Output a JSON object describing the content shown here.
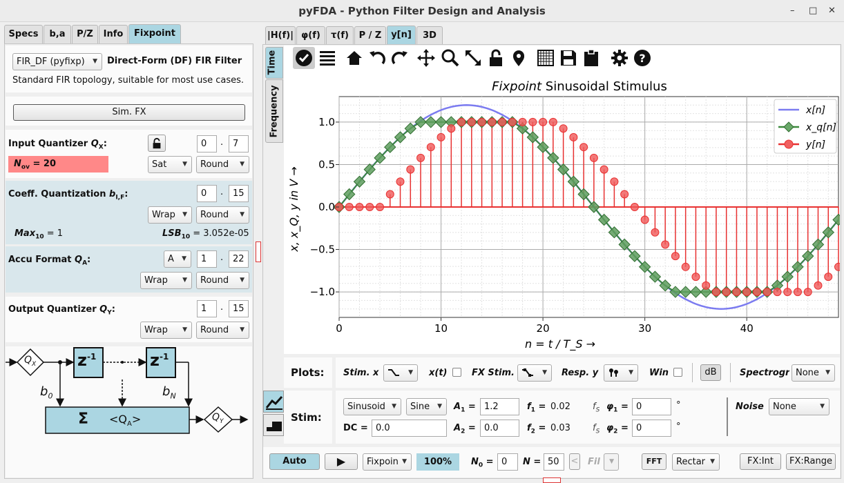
{
  "window": {
    "title": "pyFDA - Python Filter Design and Analysis",
    "minimize": "–",
    "maximize": "□",
    "close": "✕"
  },
  "left_tabs": [
    "Specs",
    "b,a",
    "P/Z",
    "Info",
    "Fixpoint"
  ],
  "fixpoint": {
    "topology_select": "FIR_DF (pyfixp)",
    "topology_title": "Direct-Form (DF) FIR Filter",
    "topology_desc": "Standard FIR topology, suitable for most use cases.",
    "sim_button": "Sim. FX",
    "input_q": {
      "label": "Input Quantizer ",
      "label_sym": "Q",
      "label_sub": "X",
      "label_end": ":",
      "int_bits": "0",
      "dot": ".",
      "frac_bits": "7",
      "overflow_label": "N",
      "overflow_sub": "ov",
      "overflow_value": " = 20",
      "ovfl_mode": "Sat",
      "quant_mode": "Round"
    },
    "coeff_q": {
      "label": "Coeff. Quantization ",
      "label_sym": "b",
      "label_sub": "I,F",
      "label_end": ":",
      "int_bits": "0",
      "dot": ".",
      "frac_bits": "15",
      "ovfl_mode": "Wrap",
      "quant_mode": "Round",
      "max_label": "Max",
      "max_sub": "10",
      "max_value": " = 1",
      "lsb_label": "LSB",
      "lsb_sub": "10",
      "lsb_value": " = 3.052e-05"
    },
    "accu_q": {
      "label": "Accu Format ",
      "label_sym": "Q",
      "label_sub": "A",
      "label_end": ":",
      "mode": "A",
      "int_bits": "1",
      "dot": ".",
      "frac_bits": "22",
      "ovfl_mode": "Wrap",
      "quant_mode": "Round"
    },
    "output_q": {
      "label": "Output Quantizer ",
      "label_sym": "Q",
      "label_sub": "Y",
      "label_end": ":",
      "int_bits": "1",
      "dot": ".",
      "frac_bits": "15",
      "ovfl_mode": "Wrap",
      "quant_mode": "Round"
    }
  },
  "diagram": {
    "qx": "Q",
    "qx_sub": "X",
    "z1": "z",
    "z1_exp": "-1",
    "z2": "z",
    "z2_exp": "-1",
    "b0": "b",
    "b0_sub": "0",
    "bn": "b",
    "bn_sub": "N",
    "sigma": "Σ",
    "qa": "<Q",
    "qa_sub": "A",
    "qa_end": ">",
    "qy": "Q",
    "qy_sub": "Y"
  },
  "right_tabs": [
    "|H(f)|",
    "φ(f)",
    "τ(f)",
    "P / Z",
    "y[n]",
    "3D"
  ],
  "side_tabs": [
    "Time",
    "Frequency"
  ],
  "toolbar_icons": [
    "check-icon",
    "list-icon",
    "home-icon",
    "undo-icon",
    "redo-icon",
    "pan-icon",
    "zoom-icon",
    "fullscreen-icon",
    "lock-icon",
    "marker-icon",
    "grid-icon",
    "save-icon",
    "clipboard-icon",
    "settings-icon",
    "help-icon"
  ],
  "chart_data": {
    "type": "line",
    "title_italic": "Fixpoint",
    "title_rest": " Sinusoidal Stimulus",
    "xlabel": "n = t / T_S →",
    "ylabel": "x, x_Q, y in V →",
    "xlim": [
      0,
      49
    ],
    "ylim": [
      -1.3,
      1.3
    ],
    "x_ticks": [
      "0",
      "10",
      "20",
      "30",
      "40"
    ],
    "y_ticks": [
      "1.0",
      "0.5",
      "0.0",
      "−0.5",
      "−1.0"
    ],
    "grid": true,
    "legend_position": "top-right",
    "legend": [
      "x[n]",
      "x_q[n]",
      "y[n]"
    ],
    "series": [
      {
        "name": "x[n]",
        "kind": "continuous",
        "color": "#7b7bf0",
        "amplitude": 1.2,
        "frequency": 0.02
      },
      {
        "name": "x_q[n]",
        "kind": "markers",
        "color": "#3c8a3c",
        "amplitude": 1.2,
        "frequency": 0.02,
        "clip": 1.0
      },
      {
        "name": "y[n]",
        "kind": "stem",
        "color": "#e83030",
        "amplitude": 1.2,
        "frequency": 0.02,
        "clip": 1.0,
        "delay": 4
      }
    ],
    "colors": {
      "x": "#7b7bf0",
      "xq": "#3c8a3c",
      "y": "#e83030"
    }
  },
  "plots_row": {
    "label": "Plots:",
    "stim_x": "Stim. x",
    "xt": "x(t)",
    "fx_stim": "FX Stim.",
    "resp_y": "Resp. y",
    "win": "Win",
    "db": "dB",
    "spectro": "Spectrogr",
    "spectro_value": "None"
  },
  "stim_row": {
    "label": "Stim:",
    "type": "Sinusoid",
    "shape": "Sine",
    "a1_label": "A",
    "a1_sub": "1",
    "a1": "1.2",
    "f1_label": "f",
    "f1_sub": "1",
    "f1": "0.02",
    "fs1": "f",
    "fs1_sub": "S",
    "phi1_label": "φ",
    "phi1_sub": "1",
    "phi1": "0",
    "deg1": "°",
    "dc_label": "DC =",
    "dc": "0.0",
    "a2_label": "A",
    "a2_sub": "2",
    "a2": "0.0",
    "f2_label": "f",
    "f2_sub": "2",
    "f2": "0.03",
    "fs2": "f",
    "fs2_sub": "S",
    "phi2_label": "φ",
    "phi2_sub": "2",
    "phi2": "0",
    "deg2": "°",
    "noise_label": "Noise",
    "noise": "None",
    "eq": " ="
  },
  "bottom_bar": {
    "auto": "Auto",
    "play": "▶",
    "fixpoint": "Fixpoin",
    "percent": "100%",
    "n0_label": "N",
    "n0_sub": "0",
    "n0": "0",
    "n_label": "N =",
    "n": "50",
    "fil_arrow": "<",
    "fil": "Fil",
    "fft": "FFT",
    "window": "Rectar",
    "fx_int": "FX:Int",
    "fx_range": "FX:Range"
  }
}
